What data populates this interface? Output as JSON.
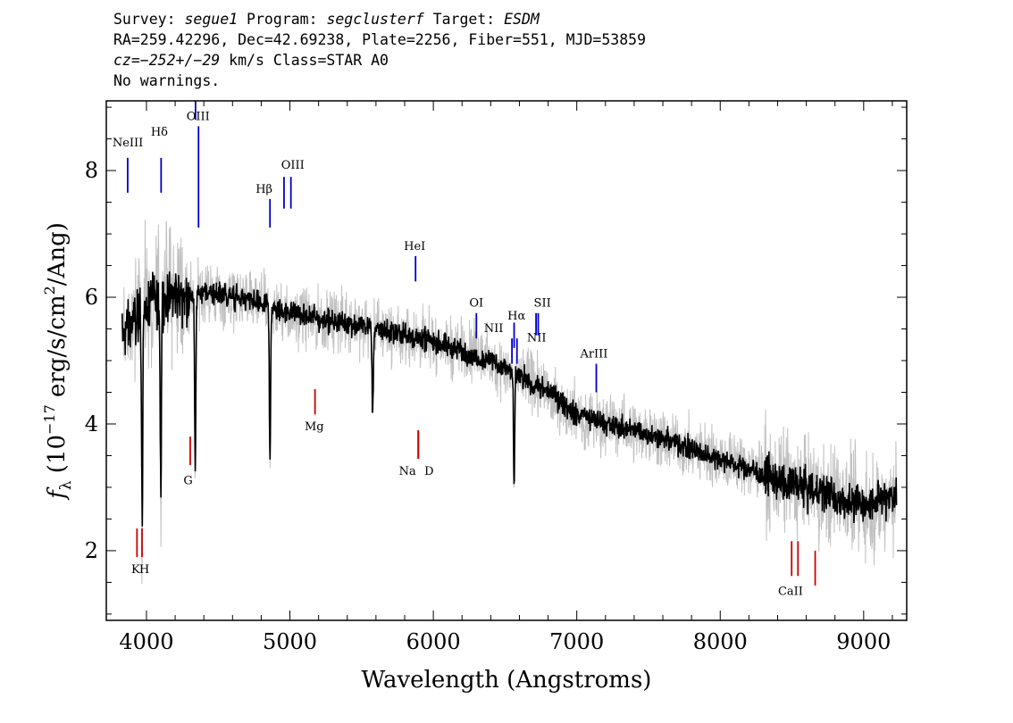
{
  "header": {
    "line1": {
      "survey_label": "Survey: ",
      "survey": "segue1",
      "program_label": " Program: ",
      "program": "segclusterf",
      "target_label": " Target: ",
      "target": "ESDM"
    },
    "line2": "RA=259.42296, Dec=42.69238, Plate=2256, Fiber=551, MJD=53859",
    "line3": {
      "cz": "cz=−252+/−29",
      "rest": " km/s Class=STAR A0"
    },
    "line4": "No warnings."
  },
  "chart_data": {
    "type": "line",
    "title": "",
    "xlabel": "Wavelength (Angstroms)",
    "ylabel": "fλ (10⁻¹⁷ erg/s/cm²/Ang)",
    "xlim": [
      3720,
      9300
    ],
    "ylim": [
      0.9,
      9.1
    ],
    "x_ticks": [
      4000,
      5000,
      6000,
      7000,
      8000,
      9000
    ],
    "y_ticks": [
      2,
      4,
      6,
      8
    ],
    "grid": false,
    "colors": {
      "flux": "#000000",
      "noise_envelope": "#c0c0c0",
      "emission": "#0000cc",
      "absorption": "#cc0000"
    },
    "series": [
      {
        "name": "",
        "role": "smoothed flux",
        "x": [
          3830,
          3900,
          4000,
          4100,
          4200,
          4300,
          4400,
          4500,
          4600,
          4700,
          4800,
          4900,
          5000,
          5200,
          5400,
          5600,
          5800,
          6000,
          6200,
          6400,
          6600,
          6800,
          7000,
          7200,
          7500,
          7800,
          8000,
          8200,
          8400,
          8600,
          8800,
          9000,
          9230
        ],
        "y": [
          5.4,
          5.6,
          5.85,
          6.0,
          6.05,
          6.0,
          6.1,
          6.05,
          6.0,
          5.95,
          5.9,
          5.8,
          5.75,
          5.65,
          5.6,
          5.5,
          5.4,
          5.3,
          5.15,
          5.0,
          4.75,
          4.5,
          4.15,
          4.0,
          3.85,
          3.6,
          3.45,
          3.3,
          3.1,
          3.0,
          2.85,
          2.7,
          2.9
        ]
      }
    ],
    "features": [
      {
        "x": 4100,
        "y": 2.9,
        "note": "Hδ absorption"
      },
      {
        "x": 4340,
        "y": 3.2,
        "note": "Hγ absorption"
      },
      {
        "x": 4861,
        "y": 3.45,
        "note": "Hβ absorption"
      },
      {
        "x": 6563,
        "y": 2.95,
        "note": "Hα absorption"
      },
      {
        "x": 3970,
        "y": 2.5,
        "note": "dip"
      },
      {
        "x": 5577,
        "y": 4.15,
        "note": "sky residual"
      }
    ],
    "emission_lines": [
      {
        "label": "NeIII",
        "wave": 3869,
        "bar": [
          7.65,
          8.2
        ],
        "text_pos": [
          3870,
          8.38
        ]
      },
      {
        "label": "Hδ",
        "wave": 4102,
        "bar": [
          7.65,
          8.2
        ],
        "text_pos": [
          4090,
          8.55
        ]
      },
      {
        "label": "OIII",
        "wave": 4342,
        "bar": [
          8.8,
          9.1
        ],
        "text_pos": [
          4360,
          8.8
        ]
      },
      {
        "label": "",
        "wave": 4363,
        "bar": [
          7.1,
          8.7
        ],
        "text_pos": null
      },
      {
        "label": "Hβ",
        "wave": 4861,
        "bar": [
          7.1,
          7.55
        ],
        "text_pos": [
          4820,
          7.65
        ]
      },
      {
        "label": "OIII",
        "wave": 4959,
        "bar": [
          7.4,
          7.9
        ],
        "text_pos": [
          5020,
          8.03
        ]
      },
      {
        "label": "",
        "wave": 5007,
        "bar": [
          7.4,
          7.9
        ],
        "text_pos": null
      },
      {
        "label": "HeI",
        "wave": 5876,
        "bar": [
          6.25,
          6.65
        ],
        "text_pos": [
          5870,
          6.75
        ]
      },
      {
        "label": "OI",
        "wave": 6300,
        "bar": [
          5.35,
          5.75
        ],
        "text_pos": [
          6300,
          5.85
        ]
      },
      {
        "label": "NII",
        "wave": 6548,
        "bar": [
          4.95,
          5.35
        ],
        "text_pos": [
          6420,
          5.45
        ]
      },
      {
        "label": "Hα",
        "wave": 6563,
        "bar": [
          5.2,
          5.6
        ],
        "text_pos": [
          6580,
          5.65
        ]
      },
      {
        "label": "NII",
        "wave": 6583,
        "bar": [
          4.95,
          5.35
        ],
        "text_pos": [
          6720,
          5.3
        ]
      },
      {
        "label": "SII",
        "wave": 6716,
        "bar": [
          5.4,
          5.75
        ],
        "text_pos": [
          6760,
          5.85
        ]
      },
      {
        "label": "",
        "wave": 6731,
        "bar": [
          5.4,
          5.75
        ],
        "text_pos": null
      },
      {
        "label": "ArIII",
        "wave": 7136,
        "bar": [
          4.5,
          4.95
        ],
        "text_pos": [
          7120,
          5.05
        ]
      }
    ],
    "absorption_lines": [
      {
        "label": "K",
        "wave": 3934,
        "bar": [
          1.9,
          2.35
        ],
        "text_pos": [
          3925,
          1.65
        ]
      },
      {
        "label": "H",
        "wave": 3969,
        "bar": [
          1.9,
          2.35
        ],
        "text_pos": [
          3985,
          1.65
        ]
      },
      {
        "label": "G",
        "wave": 4305,
        "bar": [
          3.35,
          3.8
        ],
        "text_pos": [
          4290,
          3.05
        ]
      },
      {
        "label": "Mg",
        "wave": 5175,
        "bar": [
          4.15,
          4.55
        ],
        "text_pos": [
          5170,
          3.9
        ]
      },
      {
        "label": "Na",
        "wave": 5894,
        "bar": [
          3.45,
          3.9
        ],
        "text_pos": [
          5820,
          3.2
        ]
      },
      {
        "label": "D",
        "wave": 5896,
        "bar": [
          3.45,
          3.9
        ],
        "text_pos": [
          5970,
          3.2
        ]
      },
      {
        "label": "CaII",
        "wave": 8498,
        "bar": [
          1.6,
          2.15
        ],
        "text_pos": [
          8490,
          1.3
        ]
      },
      {
        "label": "",
        "wave": 8542,
        "bar": [
          1.6,
          2.15
        ],
        "text_pos": null
      },
      {
        "label": "",
        "wave": 8662,
        "bar": [
          1.45,
          2.0
        ],
        "text_pos": null
      }
    ]
  }
}
